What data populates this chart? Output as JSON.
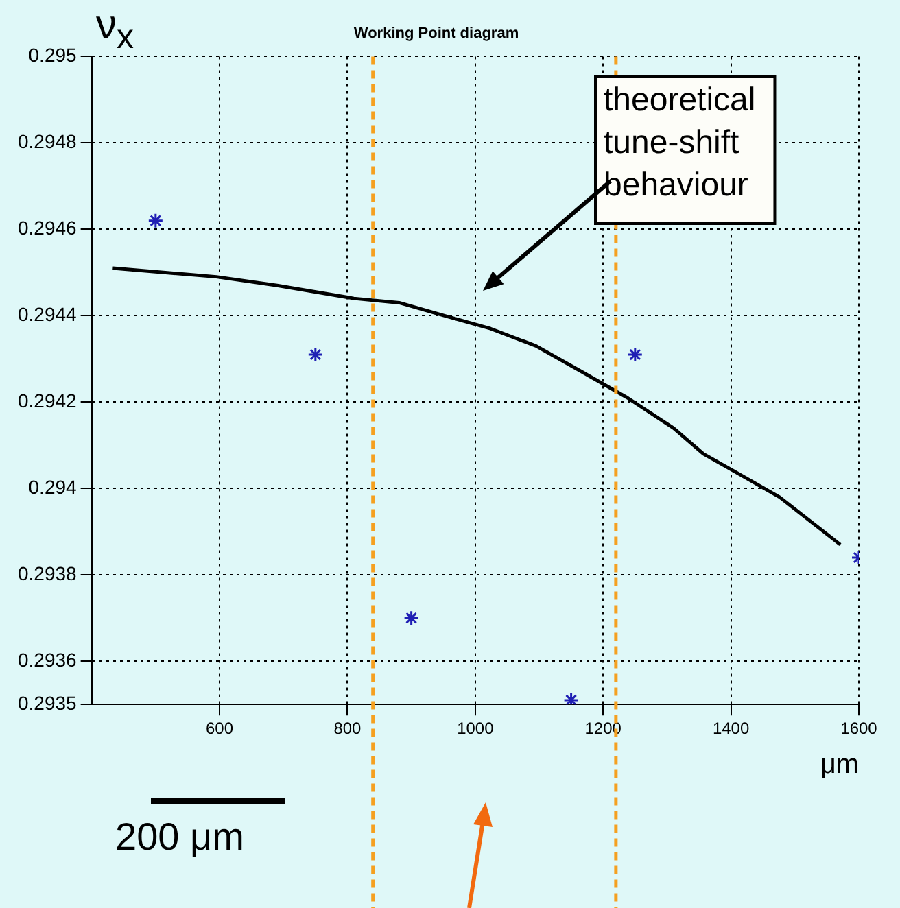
{
  "chart_data": {
    "type": "scatter",
    "title": "Working Point diagram",
    "ylabel": "ν$_{x}$",
    "xlabel": "μm",
    "xlim": [
      400,
      1600
    ],
    "xticks": [
      600,
      800,
      1000,
      1200,
      1400,
      1600
    ],
    "ylim": [
      0.2935,
      0.295
    ],
    "yticks": [
      0.295,
      0.2948,
      0.2946,
      0.2944,
      0.2942,
      0.294,
      0.2938,
      0.2936,
      0.2935
    ],
    "grid": true,
    "legend": false,
    "marker": "cross",
    "series": [
      {
        "type": "scatter",
        "color": "#1f1fb4",
        "x": [
          500,
          750,
          900,
          1150,
          1250,
          1600
        ],
        "values": [
          0.29462,
          0.29431,
          0.2937,
          0.29351,
          0.29431,
          0.29384
        ]
      },
      {
        "type": "line",
        "color": "#000000",
        "marker": "none",
        "line_style": "solid",
        "x": [
          433,
          595,
          690,
          810,
          881,
          952,
          1024,
          1095,
          1167,
          1238,
          1310,
          1357,
          1405,
          1476,
          1571
        ],
        "values": [
          0.29451,
          0.29449,
          0.29447,
          0.29444,
          0.29443,
          0.2944,
          0.29437,
          0.29433,
          0.29427,
          0.29421,
          0.29414,
          0.29408,
          0.29404,
          0.29398,
          0.29387
        ]
      }
    ],
    "ref_lines": [
      {
        "axis": "x",
        "value": 840,
        "color": "#f5a020",
        "line_style": "dashed"
      },
      {
        "axis": "x",
        "value": 1220,
        "color": "#f5a020",
        "line_style": "dashed"
      }
    ],
    "annotations": [
      "theoretical tune-shift behaviour",
      "200 μm"
    ]
  }
}
